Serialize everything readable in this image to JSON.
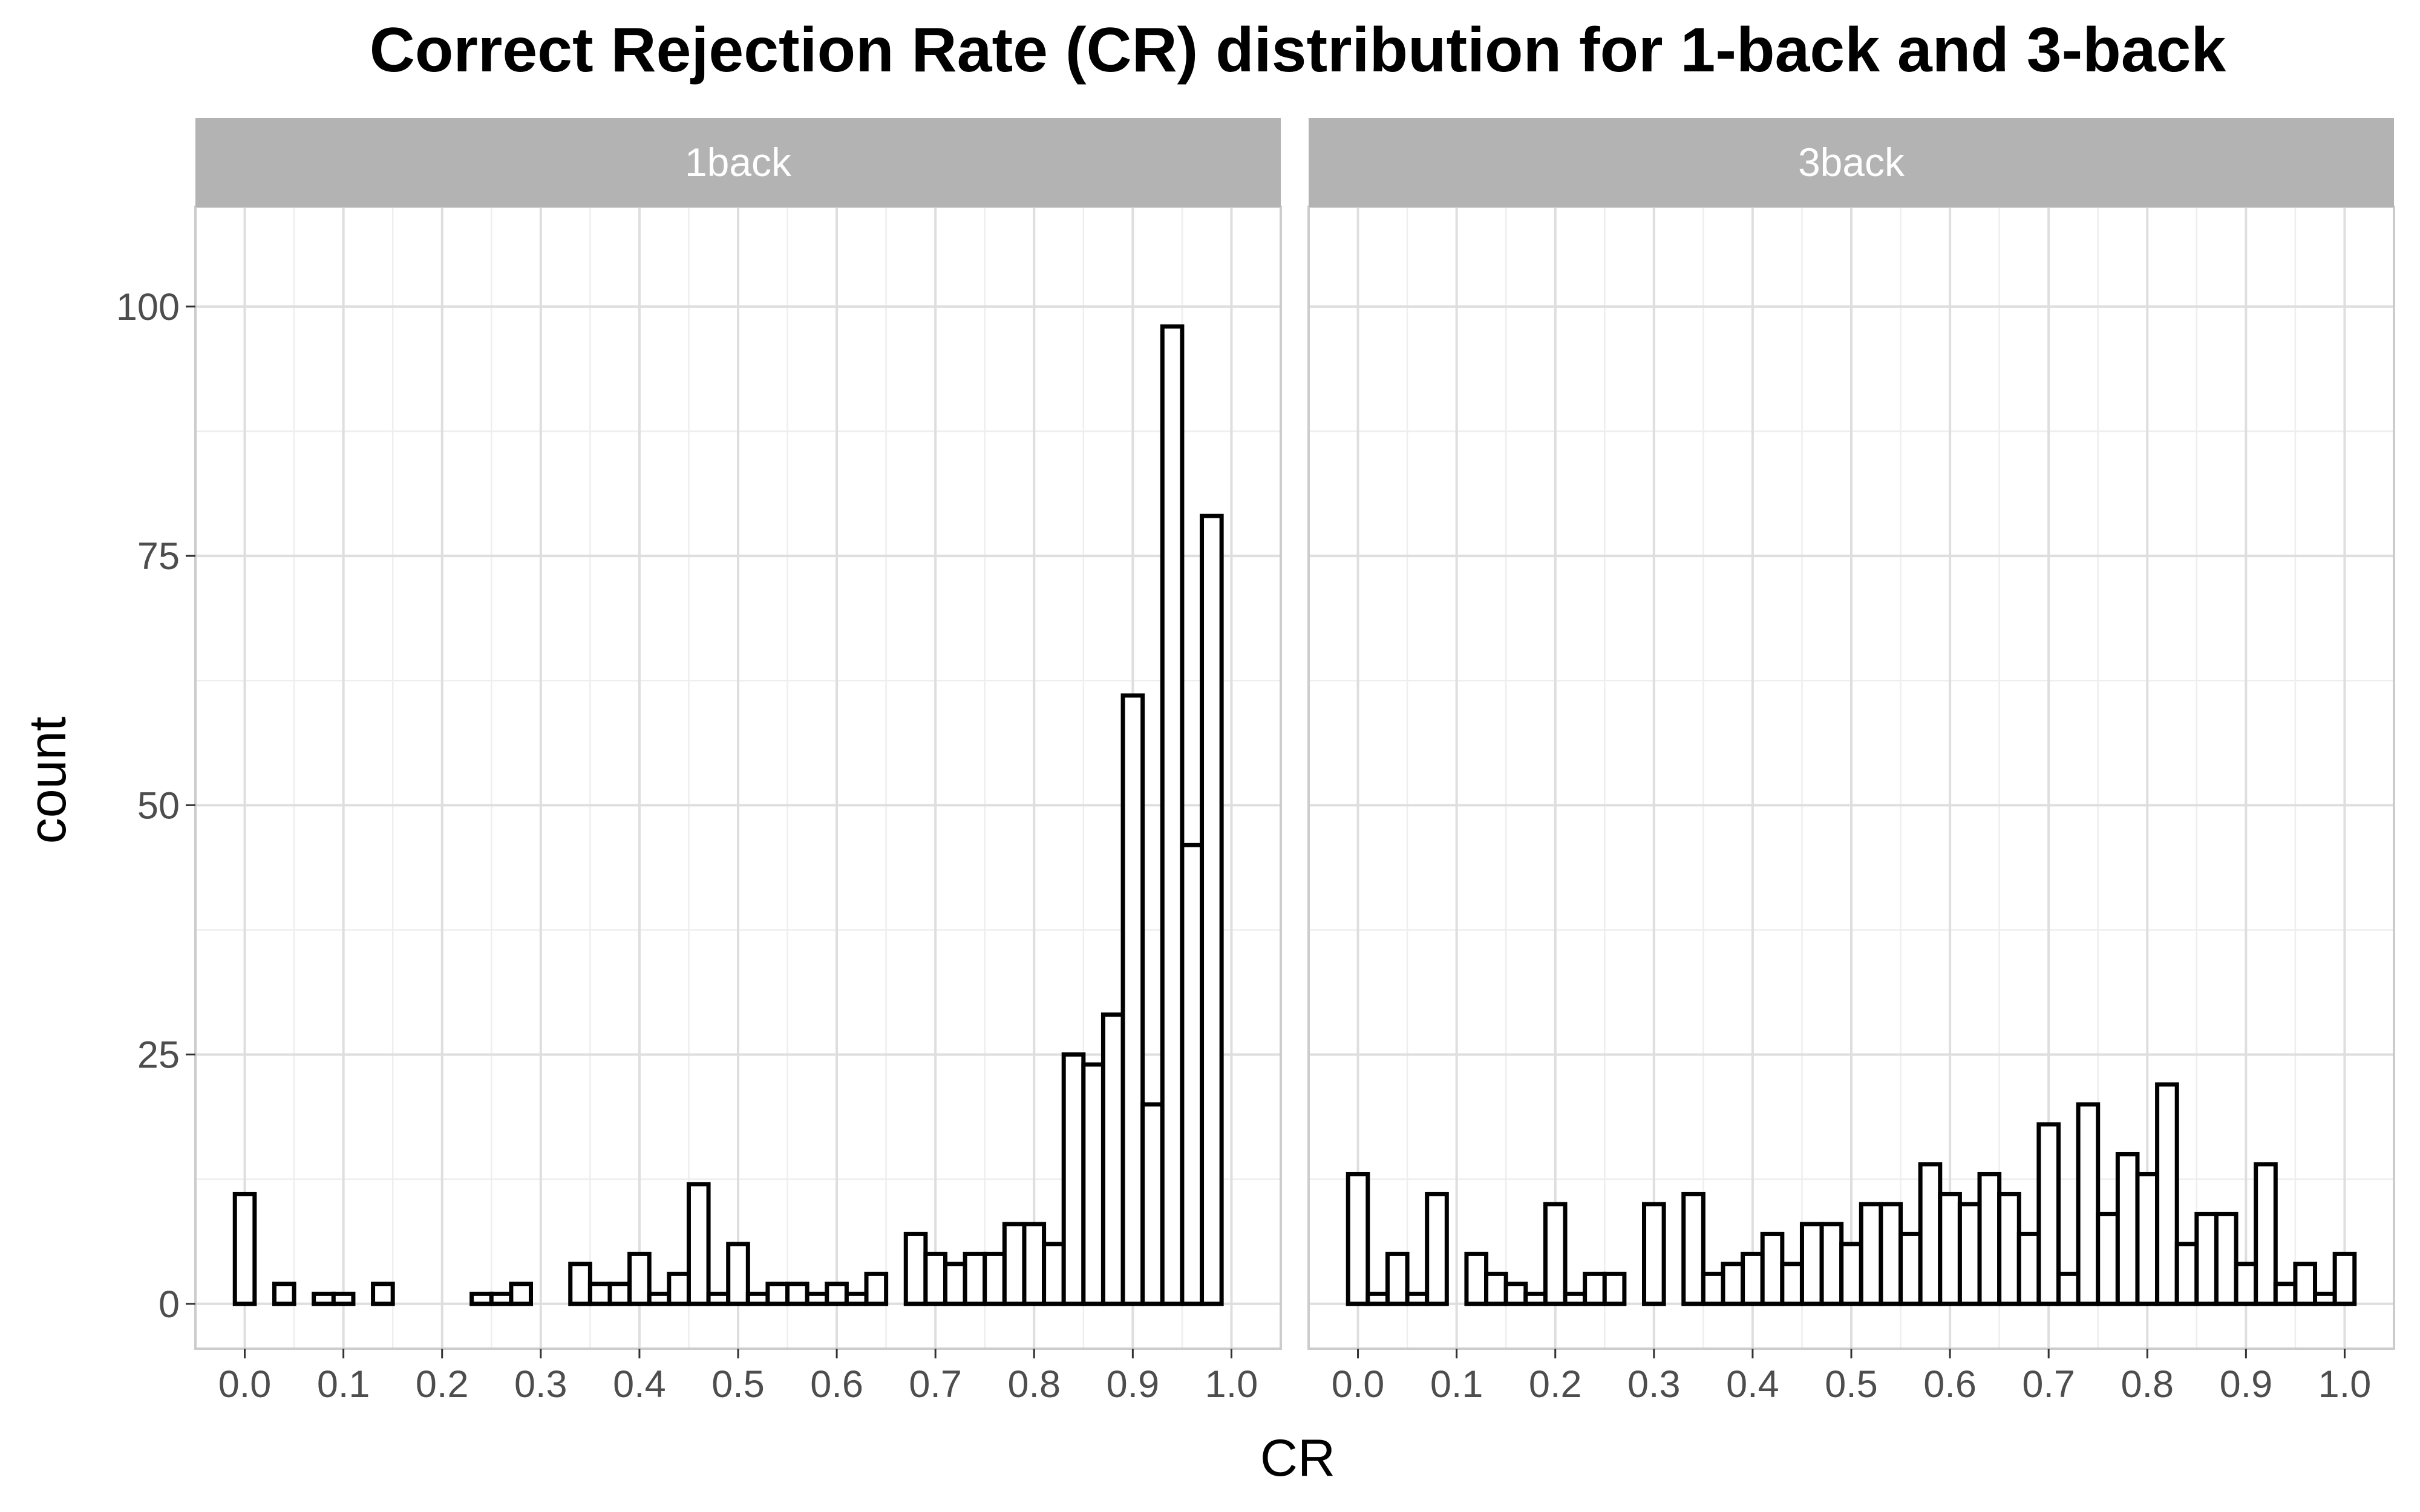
{
  "chart_data": {
    "type": "bar",
    "title": "Correct Rejection Rate (CR) distribution for 1-back and 3-back",
    "xlabel": "CR",
    "ylabel": "count",
    "xlim": [
      -0.05,
      1.05
    ],
    "ylim": [
      -4.5,
      110
    ],
    "x_ticks": [
      "0.0",
      "0.1",
      "0.2",
      "0.3",
      "0.4",
      "0.5",
      "0.6",
      "0.7",
      "0.8",
      "0.9",
      "1.0"
    ],
    "y_ticks": [
      "0",
      "25",
      "50",
      "75",
      "100"
    ],
    "y_tick_values": [
      0,
      25,
      50,
      75,
      100
    ],
    "grid": true,
    "bin_start": -0.01,
    "bin_width": 0.02,
    "panels": [
      {
        "label": "1back",
        "counts": [
          11,
          0,
          2,
          0,
          1,
          1,
          0,
          2,
          0,
          0,
          0,
          0,
          1,
          1,
          2,
          0,
          0,
          4,
          2,
          2,
          5,
          1,
          3,
          12,
          1,
          6,
          1,
          2,
          2,
          1,
          2,
          1,
          3,
          0,
          7,
          5,
          4,
          5,
          5,
          8,
          8,
          6,
          25,
          24,
          29,
          61,
          20,
          98,
          46,
          79
        ]
      },
      {
        "label": "3back",
        "counts": [
          13,
          1,
          5,
          1,
          11,
          0,
          5,
          3,
          2,
          1,
          10,
          1,
          3,
          3,
          0,
          10,
          0,
          11,
          3,
          4,
          5,
          7,
          4,
          8,
          8,
          6,
          10,
          10,
          7,
          14,
          11,
          10,
          13,
          11,
          7,
          18,
          3,
          20,
          9,
          15,
          13,
          22,
          6,
          9,
          9,
          4,
          14,
          2,
          4,
          1,
          5
        ]
      }
    ]
  }
}
